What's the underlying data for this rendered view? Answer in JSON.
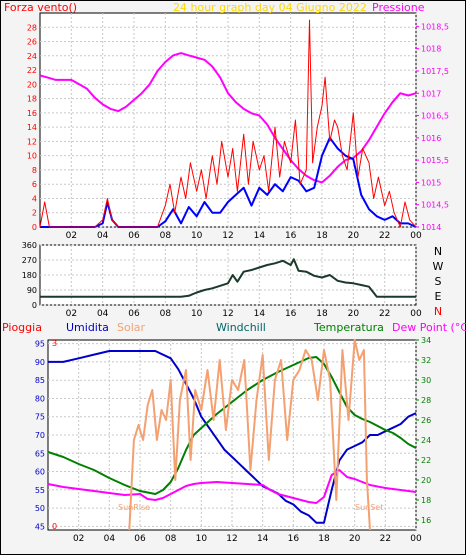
{
  "colors": {
    "wind": "#ff0000",
    "gust": "#ff0000",
    "pressure": "#ff00ff",
    "windAvg": "#0000ff",
    "direction": "#1c3a2c",
    "humidity": "#0000cc",
    "solar": "#f4a070",
    "windchill": "#006666",
    "temperature": "#008000",
    "dewpoint": "#ff00ff",
    "rain": "#ff0000",
    "title": "#ffd700",
    "grid": "#c8c8c8"
  },
  "chart_data": [
    {
      "type": "line",
      "title": "24 hour graph day  04 Giugno 2022",
      "left_label": "Forza vento()",
      "right_label": "Pressione",
      "x_ticks": [
        "02",
        "04",
        "06",
        "08",
        "10",
        "12",
        "14",
        "16",
        "18",
        "20",
        "22",
        "00"
      ],
      "xlim": [
        0,
        24
      ],
      "y_left_ticks": [
        "0",
        "2",
        "4",
        "6",
        "8",
        "10",
        "12",
        "14",
        "16",
        "18",
        "20",
        "22",
        "24",
        "26",
        "28"
      ],
      "y_left_lim": [
        0,
        30
      ],
      "y_right_ticks": [
        "1014",
        "1014,5",
        "1015",
        "1015,5",
        "1016",
        "1016,5",
        "1017",
        "1017,5",
        "1018",
        "1018,5"
      ],
      "y_right_lim": [
        1014,
        1018.8
      ],
      "series": [
        {
          "key": "pressure",
          "axis": "right",
          "x": [
            0,
            0.5,
            1,
            1.5,
            2,
            2.5,
            3,
            3.5,
            4,
            4.5,
            5,
            5.5,
            6,
            6.5,
            7,
            7.5,
            8,
            8.5,
            9,
            9.5,
            10,
            10.5,
            11,
            11.5,
            12,
            12.5,
            13,
            13.5,
            14,
            14.5,
            15,
            15.5,
            16,
            16.5,
            17,
            17.5,
            18,
            18.5,
            19,
            19.5,
            20,
            20.5,
            21,
            21.5,
            22,
            22.5,
            23,
            23.5,
            24
          ],
          "y": [
            1017.4,
            1017.35,
            1017.3,
            1017.3,
            1017.3,
            1017.2,
            1017.1,
            1016.9,
            1016.75,
            1016.65,
            1016.6,
            1016.7,
            1016.85,
            1017.0,
            1017.2,
            1017.5,
            1017.7,
            1017.85,
            1017.9,
            1017.85,
            1017.8,
            1017.75,
            1017.6,
            1017.35,
            1017.0,
            1016.8,
            1016.65,
            1016.55,
            1016.5,
            1016.3,
            1016.0,
            1015.75,
            1015.5,
            1015.3,
            1015.15,
            1015.05,
            1015.0,
            1015.15,
            1015.35,
            1015.5,
            1015.55,
            1015.7,
            1015.95,
            1016.25,
            1016.55,
            1016.8,
            1017.0,
            1016.95,
            1017.0
          ]
        },
        {
          "key": "windAvg",
          "axis": "left",
          "x": [
            0,
            0.5,
            1,
            1.5,
            2,
            2.5,
            3,
            3.5,
            4,
            4.3,
            4.6,
            5,
            5.5,
            6,
            6.5,
            7,
            7.5,
            8,
            8.5,
            9,
            9.5,
            10,
            10.5,
            11,
            11.5,
            12,
            12.5,
            13,
            13.5,
            14,
            14.5,
            15,
            15.5,
            16,
            16.5,
            17,
            17.5,
            18,
            18.5,
            19,
            19.5,
            20,
            20.5,
            21,
            21.5,
            22,
            22.5,
            23,
            23.5,
            24
          ],
          "y": [
            0,
            0,
            0,
            0,
            0,
            0,
            0,
            0,
            0.5,
            3.5,
            1,
            0,
            0,
            0,
            0,
            0,
            0,
            0.8,
            2.5,
            0.5,
            2.8,
            1.5,
            3.5,
            2,
            2,
            3.5,
            4.5,
            5.5,
            3,
            5.5,
            4.5,
            6,
            5,
            7,
            6.5,
            5,
            5.5,
            10,
            12.5,
            11,
            10,
            9.5,
            4.5,
            2.5,
            1.5,
            1,
            1.5,
            0.5,
            0.5,
            0
          ]
        },
        {
          "key": "wind",
          "axis": "left",
          "x": [
            0,
            0.3,
            0.6,
            1,
            1.5,
            2,
            2.5,
            3,
            3.5,
            4,
            4.3,
            4.6,
            5,
            5.5,
            6,
            6.5,
            7,
            7.5,
            8,
            8.3,
            8.6,
            9,
            9.3,
            9.6,
            10,
            10.3,
            10.6,
            11,
            11.3,
            11.6,
            12,
            12.3,
            12.6,
            13,
            13.3,
            13.6,
            14,
            14.3,
            14.6,
            15,
            15.3,
            15.6,
            16,
            16.3,
            16.6,
            17,
            17.2,
            17.4,
            17.7,
            18,
            18.2,
            18.5,
            18.8,
            19,
            19.3,
            19.6,
            20,
            20.3,
            20.6,
            21,
            21.3,
            21.6,
            22,
            22.3,
            22.6,
            23,
            23.3,
            23.6,
            24
          ],
          "y": [
            0,
            3.5,
            0,
            0,
            0,
            0,
            0,
            0,
            0,
            1,
            4,
            1,
            0,
            0,
            0,
            0,
            0,
            0,
            3,
            6,
            2,
            7,
            4,
            9,
            5,
            8,
            4,
            10,
            6,
            12,
            7,
            11,
            5,
            13,
            6,
            12,
            8,
            10,
            5,
            14,
            7,
            12,
            9,
            15,
            6,
            8,
            29,
            9,
            14,
            17,
            21,
            12,
            15,
            14,
            10,
            8,
            16,
            7,
            11,
            9,
            4,
            7,
            3,
            5,
            2,
            0,
            3.5,
            1,
            0
          ]
        }
      ]
    },
    {
      "type": "line",
      "title": "",
      "right_labels": [
        "N",
        "W",
        "S",
        "E",
        "N"
      ],
      "x_ticks": [
        "02",
        "04",
        "06",
        "08",
        "10",
        "12",
        "14",
        "16",
        "18",
        "20",
        "22",
        "00"
      ],
      "xlim": [
        0,
        24
      ],
      "y_ticks": [
        "0",
        "90",
        "180",
        "270",
        "360"
      ],
      "ylim": [
        0,
        360
      ],
      "series": [
        {
          "key": "direction",
          "x": [
            0,
            1,
            2,
            3,
            4,
            5,
            6,
            7,
            8,
            9,
            9.5,
            10,
            10.5,
            11,
            11.5,
            12,
            12.3,
            12.6,
            13,
            13.5,
            14,
            14.5,
            15,
            15.5,
            16,
            16.2,
            16.5,
            17,
            17.5,
            18,
            18.5,
            19,
            19.5,
            20,
            20.5,
            21,
            21.5,
            22,
            23,
            24
          ],
          "y": [
            50,
            50,
            50,
            50,
            50,
            50,
            50,
            50,
            50,
            50,
            55,
            75,
            90,
            100,
            115,
            130,
            180,
            140,
            200,
            210,
            225,
            240,
            250,
            265,
            240,
            275,
            205,
            200,
            175,
            165,
            180,
            145,
            135,
            130,
            120,
            110,
            50,
            50,
            50,
            50
          ]
        }
      ]
    },
    {
      "type": "line",
      "title": "",
      "top_labels": [
        "Pioggia",
        "Umidita",
        "Solar",
        "Windchill",
        "Temperatura",
        "Dew Point (°C)"
      ],
      "x_ticks": [
        "02",
        "04",
        "06",
        "08",
        "10",
        "12",
        "14",
        "16",
        "18",
        "20",
        "22",
        "00"
      ],
      "xlim": [
        0,
        24
      ],
      "y_left_ticks": [
        "45",
        "50",
        "55",
        "60",
        "65",
        "70",
        "75",
        "80",
        "85",
        "90",
        "95"
      ],
      "y_left_lim": [
        44,
        96
      ],
      "y_right_ticks": [
        "16",
        "18",
        "20",
        "22",
        "24",
        "26",
        "28",
        "30",
        "32",
        "34"
      ],
      "y_right_lim": [
        15,
        34
      ],
      "rain_ticks": [
        "0",
        "3"
      ],
      "annotations": [
        "SunRise",
        "SunSet"
      ],
      "series": [
        {
          "key": "humidity",
          "axis": "left",
          "x": [
            0,
            1,
            2,
            3,
            4,
            5,
            6,
            7,
            8,
            8.5,
            9,
            9.5,
            10,
            10.5,
            11,
            11.5,
            12,
            12.5,
            13,
            13.5,
            14,
            14.5,
            15,
            15.5,
            16,
            16.5,
            17,
            17.5,
            18,
            18.5,
            19,
            19.5,
            20,
            20.5,
            21,
            21.5,
            22,
            22.5,
            23,
            23.5,
            24
          ],
          "y": [
            90,
            90,
            91,
            92,
            93,
            93,
            93,
            93,
            91,
            88,
            84,
            80,
            75,
            72,
            69,
            66,
            64,
            62,
            60,
            58,
            56,
            55,
            54,
            52,
            51,
            49,
            48,
            46,
            46,
            55,
            63,
            66,
            67,
            68,
            70,
            70,
            71,
            72,
            73,
            75,
            76
          ]
        },
        {
          "key": "temperature",
          "axis": "right",
          "x": [
            0,
            1,
            2,
            3,
            4,
            5,
            6,
            7,
            7.5,
            8,
            8.5,
            9,
            9.5,
            10,
            11,
            12,
            13,
            14,
            15,
            16,
            17,
            17.5,
            18,
            18.5,
            19,
            19.5,
            20,
            20.5,
            21,
            21.5,
            22,
            22.5,
            23,
            23.5,
            24
          ],
          "y": [
            22.8,
            22.3,
            21.6,
            21.0,
            20.2,
            19.5,
            18.9,
            18.6,
            19.0,
            19.8,
            21.2,
            23.0,
            24.5,
            25.2,
            26.6,
            27.8,
            29.0,
            30.0,
            30.8,
            31.5,
            32.2,
            32.3,
            31.6,
            30.3,
            28.8,
            27.3,
            26.5,
            26.1,
            25.8,
            25.4,
            25.0,
            24.7,
            24.2,
            23.6,
            23.2
          ]
        },
        {
          "key": "dewpoint",
          "axis": "right",
          "x": [
            0,
            1,
            2,
            3,
            4,
            5,
            6,
            6.5,
            7,
            7.5,
            8,
            8.5,
            9,
            9.5,
            10,
            11,
            12,
            13,
            14,
            14.5,
            15,
            15.5,
            16,
            16.5,
            17,
            17.5,
            18,
            18.5,
            19,
            19.5,
            20,
            20.5,
            21,
            22,
            23,
            24
          ],
          "y": [
            19.6,
            19.3,
            19.1,
            18.9,
            18.7,
            18.5,
            18.6,
            18.1,
            18.0,
            18.2,
            18.6,
            19.0,
            19.4,
            19.6,
            19.7,
            19.8,
            19.7,
            19.6,
            19.5,
            19.0,
            18.6,
            18.4,
            18.2,
            18.0,
            17.8,
            17.7,
            18.3,
            20.5,
            21.0,
            20.3,
            20.1,
            19.8,
            19.5,
            19.2,
            19.0,
            18.8
          ]
        },
        {
          "key": "solar",
          "axis": "right",
          "x": [
            5.3,
            5.6,
            5.9,
            6.2,
            6.5,
            6.8,
            7.1,
            7.4,
            7.7,
            8,
            8.3,
            8.6,
            9,
            9.3,
            9.6,
            10,
            10.4,
            10.8,
            11.2,
            11.6,
            12,
            12.4,
            12.8,
            13.2,
            13.6,
            14,
            14.4,
            14.8,
            15.2,
            15.6,
            16,
            16.4,
            16.8,
            17.2,
            17.6,
            18,
            18.4,
            18.8,
            19.2,
            19.6,
            20,
            20.3,
            20.6,
            20.8,
            21
          ],
          "y": [
            15,
            24,
            25.5,
            24,
            27.5,
            29,
            24,
            27,
            26,
            30,
            20,
            28,
            31,
            22,
            29,
            27,
            31,
            26,
            32,
            25,
            30,
            29,
            32,
            21,
            28,
            32.5,
            22,
            30,
            32,
            24,
            30,
            31,
            33,
            32,
            28,
            33,
            30,
            18,
            33,
            26,
            34,
            32,
            33,
            20,
            15
          ]
        }
      ]
    }
  ]
}
